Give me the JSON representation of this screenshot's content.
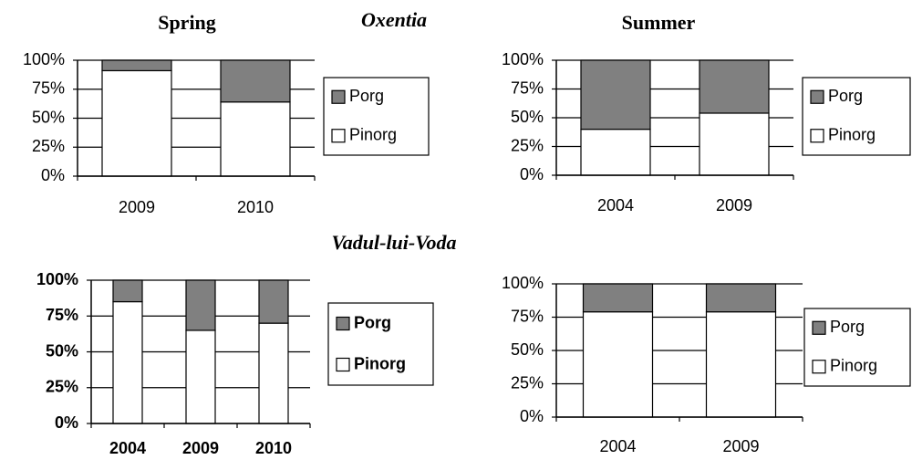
{
  "sites": [
    "Oxentia",
    "Vadul-lui-Voda"
  ],
  "chart_data": [
    {
      "type": "stacked-bar",
      "title": "Spring",
      "categories": [
        "2009",
        "2010"
      ],
      "series": [
        {
          "name": "Pinorg",
          "color": "#ffffff",
          "values": [
            91,
            64
          ]
        },
        {
          "name": "Porg",
          "color": "#808080",
          "values": [
            9,
            36
          ]
        }
      ],
      "ylim": [
        0,
        100
      ],
      "yticks": [
        {
          "value": 0,
          "label": "0%"
        },
        {
          "value": 25,
          "label": "25%"
        },
        {
          "value": 50,
          "label": "50%"
        },
        {
          "value": 75,
          "label": "75%"
        },
        {
          "value": 100,
          "label": "100%"
        }
      ],
      "grid": true,
      "legend": "right"
    },
    {
      "type": "stacked-bar",
      "title": "Summer",
      "categories": [
        "2004",
        "2009"
      ],
      "series": [
        {
          "name": "Pinorg",
          "color": "#ffffff",
          "values": [
            40,
            54
          ]
        },
        {
          "name": "Porg",
          "color": "#808080",
          "values": [
            60,
            46
          ]
        }
      ],
      "ylim": [
        0,
        100
      ],
      "yticks": [
        {
          "value": 0,
          "label": "0%"
        },
        {
          "value": 25,
          "label": "25%"
        },
        {
          "value": 50,
          "label": "50%"
        },
        {
          "value": 75,
          "label": "75%"
        },
        {
          "value": 100,
          "label": "100%"
        }
      ],
      "grid": true,
      "legend": "right"
    },
    {
      "type": "stacked-bar",
      "categories": [
        "2004",
        "2009",
        "2010"
      ],
      "series": [
        {
          "name": "Pinorg",
          "color": "#ffffff",
          "values": [
            85,
            65,
            70
          ]
        },
        {
          "name": "Porg",
          "color": "#808080",
          "values": [
            15,
            35,
            30
          ]
        }
      ],
      "ylim": [
        0,
        100
      ],
      "yticks": [
        {
          "value": 0,
          "label": "0%"
        },
        {
          "value": 25,
          "label": "25%"
        },
        {
          "value": 50,
          "label": "50%"
        },
        {
          "value": 75,
          "label": "75%"
        },
        {
          "value": 100,
          "label": "100%"
        }
      ],
      "grid": true,
      "legend": "right"
    },
    {
      "type": "stacked-bar",
      "categories": [
        "2004",
        "2009"
      ],
      "series": [
        {
          "name": "Pinorg",
          "color": "#ffffff",
          "values": [
            79,
            79
          ]
        },
        {
          "name": "Porg",
          "color": "#808080",
          "values": [
            21,
            21
          ]
        }
      ],
      "ylim": [
        0,
        100
      ],
      "yticks": [
        {
          "value": 0,
          "label": "0%"
        },
        {
          "value": 25,
          "label": "25%"
        },
        {
          "value": 50,
          "label": "50%"
        },
        {
          "value": 75,
          "label": "75%"
        },
        {
          "value": 100,
          "label": "100%"
        }
      ],
      "grid": true,
      "legend": "right"
    }
  ]
}
